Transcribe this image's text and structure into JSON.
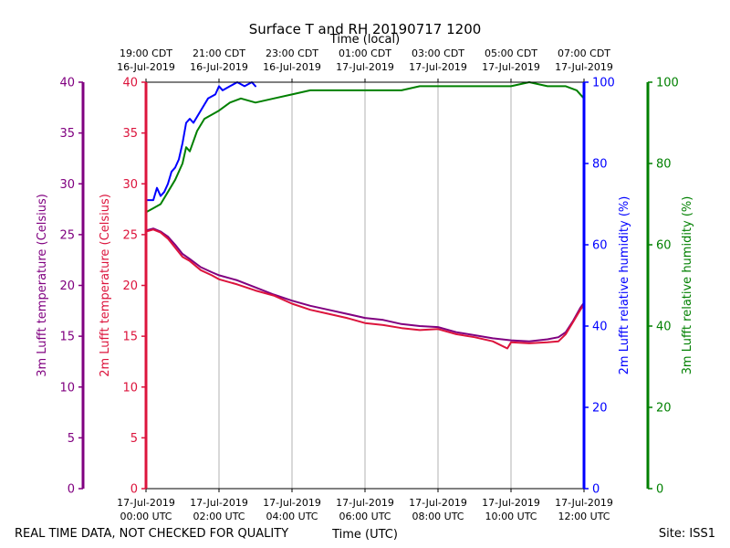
{
  "chart_data": {
    "type": "line",
    "title": "Surface T and RH 20190717 1200",
    "top_axis_title": "Time (local)",
    "xlabel": "Time (UTC)",
    "footer_left": "REAL TIME DATA, NOT CHECKED FOR QUALITY",
    "footer_right": "Site: ISS1",
    "x_range_hours": [
      0,
      12
    ],
    "x_ticks_utc": [
      {
        "hour": 0,
        "date": "17-Jul-2019",
        "time": "00:00 UTC"
      },
      {
        "hour": 2,
        "date": "17-Jul-2019",
        "time": "02:00 UTC"
      },
      {
        "hour": 4,
        "date": "17-Jul-2019",
        "time": "04:00 UTC"
      },
      {
        "hour": 6,
        "date": "17-Jul-2019",
        "time": "06:00 UTC"
      },
      {
        "hour": 8,
        "date": "17-Jul-2019",
        "time": "08:00 UTC"
      },
      {
        "hour": 10,
        "date": "17-Jul-2019",
        "time": "10:00 UTC"
      },
      {
        "hour": 12,
        "date": "17-Jul-2019",
        "time": "12:00 UTC"
      }
    ],
    "x_ticks_local": [
      {
        "hour": 0,
        "time": "19:00 CDT",
        "date": "16-Jul-2019"
      },
      {
        "hour": 2,
        "time": "21:00 CDT",
        "date": "16-Jul-2019"
      },
      {
        "hour": 4,
        "time": "23:00 CDT",
        "date": "16-Jul-2019"
      },
      {
        "hour": 6,
        "time": "01:00 CDT",
        "date": "17-Jul-2019"
      },
      {
        "hour": 8,
        "time": "03:00 CDT",
        "date": "17-Jul-2019"
      },
      {
        "hour": 10,
        "time": "05:00 CDT",
        "date": "17-Jul-2019"
      },
      {
        "hour": 12,
        "time": "07:00 CDT",
        "date": "17-Jul-2019"
      }
    ],
    "axes": {
      "t3m": {
        "label": "3m Lufft temperature (Celsius)",
        "color": "#800080",
        "ylim": [
          0,
          40
        ],
        "ticks": [
          0,
          5,
          10,
          15,
          20,
          25,
          30,
          35,
          40
        ]
      },
      "t2m": {
        "label": "2m Lufft temperature (Celsius)",
        "color": "#dc143c",
        "ylim": [
          0,
          40
        ],
        "ticks": [
          0,
          5,
          10,
          15,
          20,
          25,
          30,
          35,
          40
        ]
      },
      "rh2m": {
        "label": "2m Lufft relative humidity (%)",
        "color": "#0000ff",
        "ylim": [
          0,
          100
        ],
        "ticks": [
          0,
          20,
          40,
          60,
          80,
          100
        ]
      },
      "rh3m": {
        "label": "3m Lufft relative humidity (%)",
        "color": "#008000",
        "ylim": [
          0,
          100
        ],
        "ticks": [
          0,
          20,
          40,
          60,
          80,
          100
        ]
      }
    },
    "series": [
      {
        "name": "3m Lufft temperature",
        "axis": "t3m",
        "color": "#800080",
        "x": [
          0,
          0.2,
          0.4,
          0.6,
          0.8,
          1.0,
          1.2,
          1.5,
          1.8,
          2.0,
          2.5,
          3.0,
          3.5,
          4.0,
          4.5,
          5.0,
          5.5,
          6.0,
          6.5,
          7.0,
          7.5,
          8.0,
          8.5,
          9.0,
          9.5,
          10.0,
          10.5,
          11.0,
          11.3,
          11.5,
          11.7,
          11.9,
          12.0
        ],
        "y": [
          25.4,
          25.6,
          25.3,
          24.8,
          24.0,
          23.1,
          22.6,
          21.8,
          21.3,
          21.0,
          20.5,
          19.8,
          19.1,
          18.5,
          18.0,
          17.6,
          17.2,
          16.8,
          16.6,
          16.2,
          16.0,
          15.9,
          15.4,
          15.1,
          14.8,
          14.6,
          14.5,
          14.7,
          14.9,
          15.4,
          16.5,
          17.8,
          18.3
        ]
      },
      {
        "name": "2m Lufft temperature",
        "axis": "t2m",
        "color": "#dc143c",
        "x": [
          0,
          0.2,
          0.4,
          0.6,
          0.8,
          1.0,
          1.2,
          1.5,
          1.8,
          2.0,
          2.5,
          3.0,
          3.5,
          4.0,
          4.5,
          5.0,
          5.5,
          6.0,
          6.5,
          7.0,
          7.5,
          8.0,
          8.5,
          9.0,
          9.5,
          9.9,
          10.0,
          10.5,
          11.0,
          11.3,
          11.5,
          11.7,
          11.9,
          12.0
        ],
        "y": [
          25.3,
          25.5,
          25.2,
          24.6,
          23.7,
          22.8,
          22.4,
          21.5,
          21.0,
          20.6,
          20.1,
          19.5,
          19.0,
          18.2,
          17.6,
          17.2,
          16.8,
          16.3,
          16.1,
          15.8,
          15.6,
          15.7,
          15.2,
          14.9,
          14.5,
          13.8,
          14.4,
          14.3,
          14.4,
          14.5,
          15.2,
          16.4,
          17.6,
          18.1
        ]
      },
      {
        "name": "2m Lufft relative humidity",
        "axis": "rh2m",
        "color": "#0000ff",
        "x": [
          0,
          0.2,
          0.3,
          0.4,
          0.5,
          0.6,
          0.7,
          0.8,
          0.9,
          1.0,
          1.1,
          1.2,
          1.3,
          1.5,
          1.7,
          1.9,
          2.0,
          2.1,
          2.3,
          2.5,
          2.7,
          2.9,
          3.0
        ],
        "y": [
          71,
          71,
          74,
          72,
          73,
          75,
          78,
          79,
          81,
          85,
          90,
          91,
          90,
          93,
          96,
          97,
          99,
          98,
          99,
          100,
          99,
          100,
          99
        ]
      },
      {
        "name": "3m Lufft relative humidity",
        "axis": "rh3m",
        "color": "#008000",
        "x": [
          0,
          0.2,
          0.4,
          0.6,
          0.8,
          1.0,
          1.1,
          1.2,
          1.4,
          1.6,
          1.8,
          2.0,
          2.3,
          2.6,
          3.0,
          3.5,
          4.0,
          4.5,
          5.0,
          5.5,
          6.0,
          7.0,
          7.5,
          8.0,
          9.0,
          10.0,
          10.5,
          11.0,
          11.5,
          11.8,
          11.9,
          12.0
        ],
        "y": [
          68,
          69,
          70,
          73,
          76,
          80,
          84,
          83,
          88,
          91,
          92,
          93,
          95,
          96,
          95,
          96,
          97,
          98,
          98,
          98,
          98,
          98,
          99,
          99,
          99,
          99,
          100,
          99,
          99,
          98,
          97,
          96
        ]
      }
    ]
  }
}
